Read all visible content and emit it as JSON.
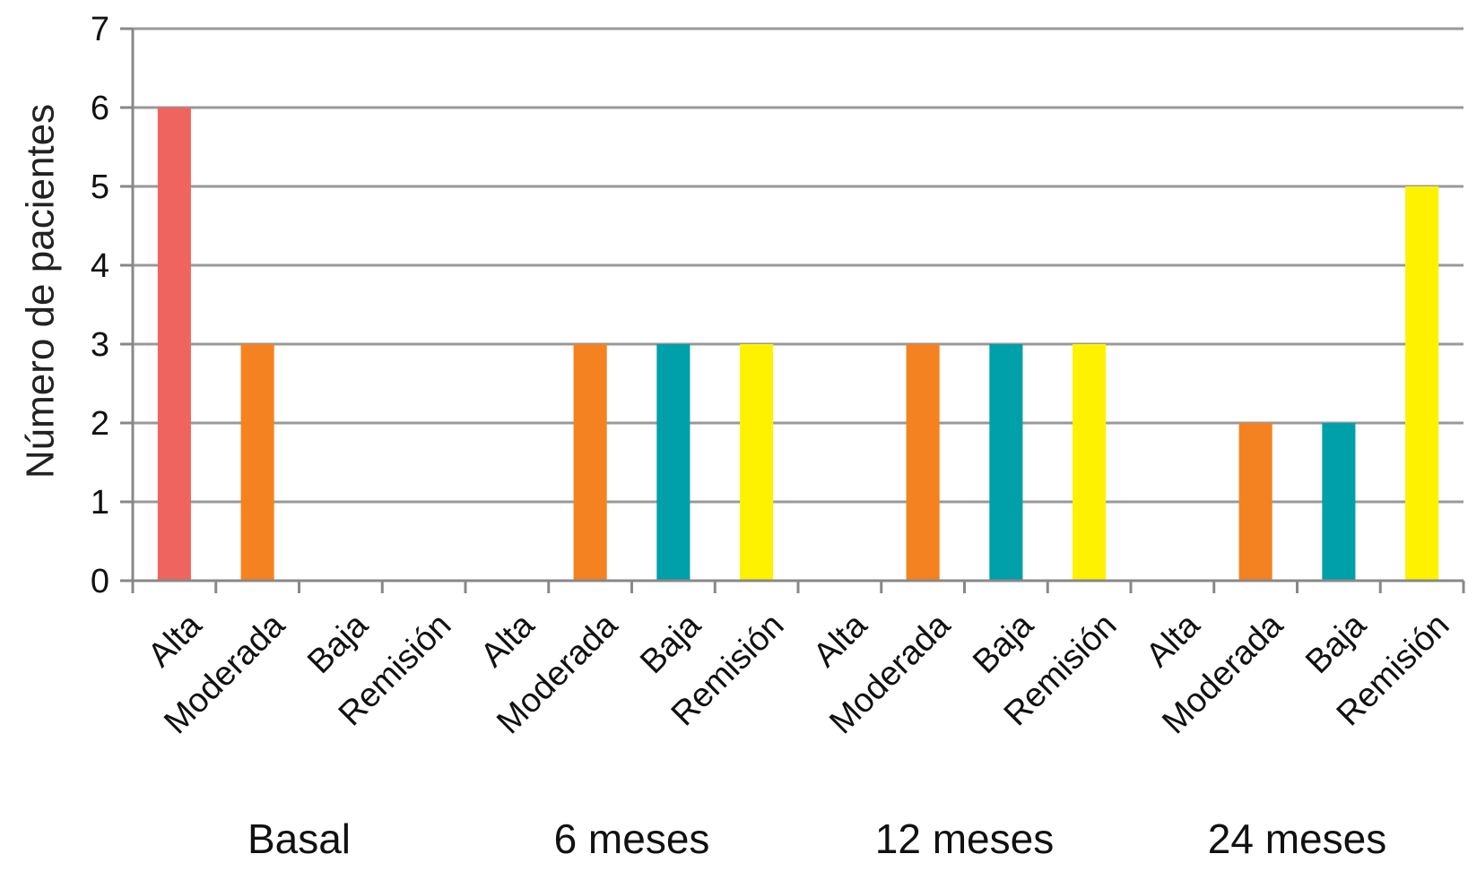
{
  "chart_data": {
    "type": "bar",
    "title": "",
    "ylabel": "Número de pacientes",
    "xlabel": "",
    "ylim": [
      0,
      7
    ],
    "yticks": [
      0,
      1,
      2,
      3,
      4,
      5,
      6,
      7
    ],
    "grid": true,
    "legend": "none",
    "groups": [
      {
        "label": "Basal",
        "bars": [
          {
            "category": "Alta",
            "value": 6
          },
          {
            "category": "Moderada",
            "value": 3
          },
          {
            "category": "Baja",
            "value": 0
          },
          {
            "category": "Remisión",
            "value": 0
          }
        ]
      },
      {
        "label": "6 meses",
        "bars": [
          {
            "category": "Alta",
            "value": 0
          },
          {
            "category": "Moderada",
            "value": 3
          },
          {
            "category": "Baja",
            "value": 3
          },
          {
            "category": "Remisión",
            "value": 3
          }
        ]
      },
      {
        "label": "12 meses",
        "bars": [
          {
            "category": "Alta",
            "value": 0
          },
          {
            "category": "Moderada",
            "value": 3
          },
          {
            "category": "Baja",
            "value": 3
          },
          {
            "category": "Remisión",
            "value": 3
          }
        ]
      },
      {
        "label": "24 meses",
        "bars": [
          {
            "category": "Alta",
            "value": 0
          },
          {
            "category": "Moderada",
            "value": 2
          },
          {
            "category": "Baja",
            "value": 2
          },
          {
            "category": "Remisión",
            "value": 5
          }
        ]
      }
    ],
    "colors": {
      "Alta": "#f0645f",
      "Moderada": "#f58220",
      "Baja": "#00a0aa",
      "Remisión": "#fff200"
    },
    "gridline_color": "#999999",
    "axis_color": "#888888"
  }
}
